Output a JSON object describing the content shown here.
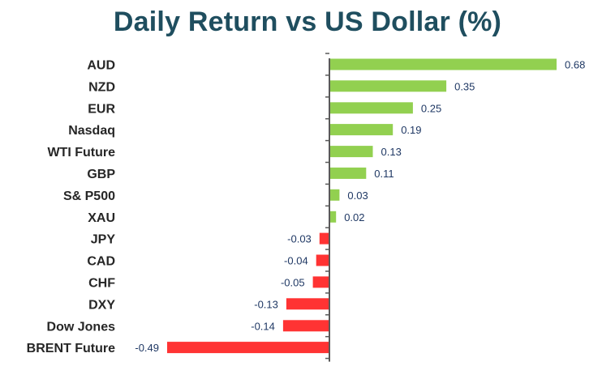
{
  "chart_data": {
    "type": "bar",
    "orientation": "horizontal",
    "title": "Daily Return vs US Dollar (%)",
    "categories": [
      "AUD",
      "NZD",
      "EUR",
      "Nasdaq",
      "WTI Future",
      "GBP",
      "S& P500",
      "XAU",
      "JPY",
      "CAD",
      "CHF",
      "DXY",
      "Dow Jones",
      "BRENT Future"
    ],
    "values": [
      0.68,
      0.35,
      0.25,
      0.19,
      0.13,
      0.11,
      0.03,
      0.02,
      -0.03,
      -0.04,
      -0.05,
      -0.13,
      -0.14,
      -0.49
    ],
    "value_labels": [
      "0.68",
      "0.35",
      "0.25",
      "0.19",
      "0.13",
      "0.11",
      "0.03",
      "0.02",
      "-0.03",
      "-0.04",
      "-0.05",
      "-0.13",
      "-0.14",
      "-0.49"
    ],
    "xlim": [
      -0.49,
      0.68
    ],
    "grid": false,
    "legend": "none",
    "colors": {
      "positive": "#92d050",
      "negative": "#ff3333",
      "title": "#1f4e5f",
      "category_text": "#262626",
      "value_label_text": "#1f3864",
      "axis": "#595959"
    }
  }
}
